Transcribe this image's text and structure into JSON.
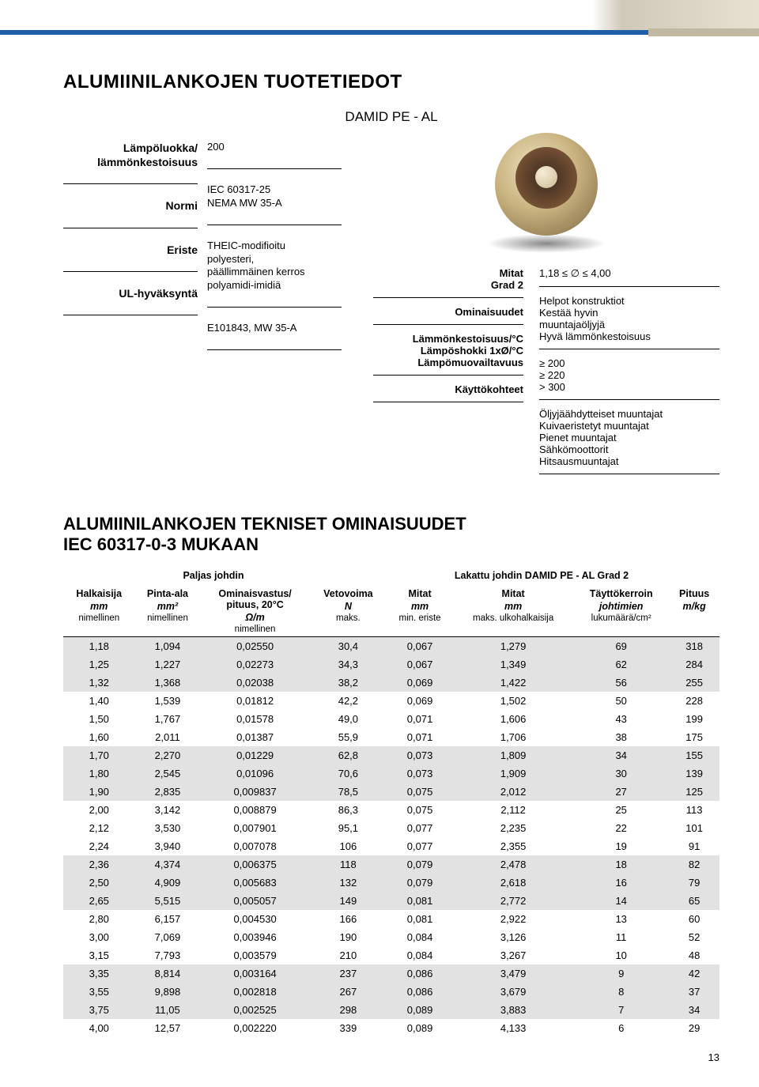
{
  "header": {
    "main_title": "ALUMIINILANKOJEN TUOTETIEDOT",
    "subtitle": "DAMID PE - AL"
  },
  "spec_left": {
    "rows": [
      {
        "label": "Lämpöluokka/\nlämmönkestoisuus",
        "value": "200"
      },
      {
        "label": "Normi",
        "value": "IEC 60317-25\nNEMA MW 35-A"
      },
      {
        "label": "Eriste",
        "value": "THEIC-modifioitu\npolyesteri,\npäällimmäinen kerros\npolyamidi-imidiä"
      },
      {
        "label": "UL-hyväksyntä",
        "value": "E101843, MW 35-A"
      }
    ]
  },
  "spec_right": {
    "rows": [
      {
        "label": "Mitat\nGrad 2",
        "value": "1,18 ≤ ∅ ≤ 4,00"
      },
      {
        "label": "Ominaisuudet",
        "value": "Helpot konstruktiot\nKestää hyvin\nmuuntajaöljyjä\nHyvä lämmönkestoisuus"
      },
      {
        "label": "Lämmönkestoisuus/°C\nLämpöshokki 1xØ/°C\nLämpömuovailtavuus",
        "value": "≥ 200\n≥ 220\n> 300"
      },
      {
        "label": "Käyttökohteet",
        "value": "Öljyjäähdytteiset muuntajat\nKuivaeristetyt muuntajat\nPienet muuntajat\nSähkömoottorit\nHitsausmuuntajat"
      }
    ]
  },
  "section2": {
    "title_line1": "ALUMIINILANKOJEN TEKNISET OMINAISUUDET",
    "title_line2": "IEC 60317-0-3 MUKAAN",
    "super_head_left": "Paljas johdin",
    "super_head_right": "Lakattu johdin DAMID PE - AL Grad 2"
  },
  "table": {
    "columns": [
      {
        "h1": "Halkaisija",
        "unit": "mm",
        "sub": "nimellinen"
      },
      {
        "h1": "Pinta-ala",
        "unit": "mm²",
        "sub": "nimellinen"
      },
      {
        "h1": "Ominaisvastus/\npituus, 20°C",
        "unit": "Ω/m",
        "sub": "nimellinen"
      },
      {
        "h1": "Vetovoima",
        "unit": "N",
        "sub": "maks."
      },
      {
        "h1": "Mitat",
        "unit": "mm",
        "sub": "min. eriste"
      },
      {
        "h1": "Mitat",
        "unit": "mm",
        "sub": "maks. ulkohalkaisija"
      },
      {
        "h1": "Täyttökerroin",
        "unit": "johtimien",
        "sub": "lukumäärä/cm²"
      },
      {
        "h1": "Pituus",
        "unit": "m/kg",
        "sub": ""
      }
    ],
    "band_pattern": [
      1,
      1,
      1,
      0,
      0,
      0,
      1,
      1,
      1,
      0,
      0,
      0,
      1,
      1,
      1,
      0,
      0,
      0,
      1,
      1,
      1,
      0
    ],
    "rows": [
      [
        "1,18",
        "1,094",
        "0,02550",
        "30,4",
        "0,067",
        "1,279",
        "69",
        "318"
      ],
      [
        "1,25",
        "1,227",
        "0,02273",
        "34,3",
        "0,067",
        "1,349",
        "62",
        "284"
      ],
      [
        "1,32",
        "1,368",
        "0,02038",
        "38,2",
        "0,069",
        "1,422",
        "56",
        "255"
      ],
      [
        "1,40",
        "1,539",
        "0,01812",
        "42,2",
        "0,069",
        "1,502",
        "50",
        "228"
      ],
      [
        "1,50",
        "1,767",
        "0,01578",
        "49,0",
        "0,071",
        "1,606",
        "43",
        "199"
      ],
      [
        "1,60",
        "2,011",
        "0,01387",
        "55,9",
        "0,071",
        "1,706",
        "38",
        "175"
      ],
      [
        "1,70",
        "2,270",
        "0,01229",
        "62,8",
        "0,073",
        "1,809",
        "34",
        "155"
      ],
      [
        "1,80",
        "2,545",
        "0,01096",
        "70,6",
        "0,073",
        "1,909",
        "30",
        "139"
      ],
      [
        "1,90",
        "2,835",
        "0,009837",
        "78,5",
        "0,075",
        "2,012",
        "27",
        "125"
      ],
      [
        "2,00",
        "3,142",
        "0,008879",
        "86,3",
        "0,075",
        "2,112",
        "25",
        "113"
      ],
      [
        "2,12",
        "3,530",
        "0,007901",
        "95,1",
        "0,077",
        "2,235",
        "22",
        "101"
      ],
      [
        "2,24",
        "3,940",
        "0,007078",
        "106",
        "0,077",
        "2,355",
        "19",
        "91"
      ],
      [
        "2,36",
        "4,374",
        "0,006375",
        "118",
        "0,079",
        "2,478",
        "18",
        "82"
      ],
      [
        "2,50",
        "4,909",
        "0,005683",
        "132",
        "0,079",
        "2,618",
        "16",
        "79"
      ],
      [
        "2,65",
        "5,515",
        "0,005057",
        "149",
        "0,081",
        "2,772",
        "14",
        "65"
      ],
      [
        "2,80",
        "6,157",
        "0,004530",
        "166",
        "0,081",
        "2,922",
        "13",
        "60"
      ],
      [
        "3,00",
        "7,069",
        "0,003946",
        "190",
        "0,084",
        "3,126",
        "11",
        "52"
      ],
      [
        "3,15",
        "7,793",
        "0,003579",
        "210",
        "0,084",
        "3,267",
        "10",
        "48"
      ],
      [
        "3,35",
        "8,814",
        "0,003164",
        "237",
        "0,086",
        "3,479",
        "9",
        "42"
      ],
      [
        "3,55",
        "9,898",
        "0,002818",
        "267",
        "0,086",
        "3,679",
        "8",
        "37"
      ],
      [
        "3,75",
        "11,05",
        "0,002525",
        "298",
        "0,089",
        "3,883",
        "7",
        "34"
      ],
      [
        "4,00",
        "12,57",
        "0,002220",
        "339",
        "0,089",
        "4,133",
        "6",
        "29"
      ]
    ]
  },
  "page_number": "13",
  "colors": {
    "accent_blue": "#1f5fa8",
    "band_gray": "#e2e2e2",
    "wire_texture": "#d0c8b8"
  }
}
